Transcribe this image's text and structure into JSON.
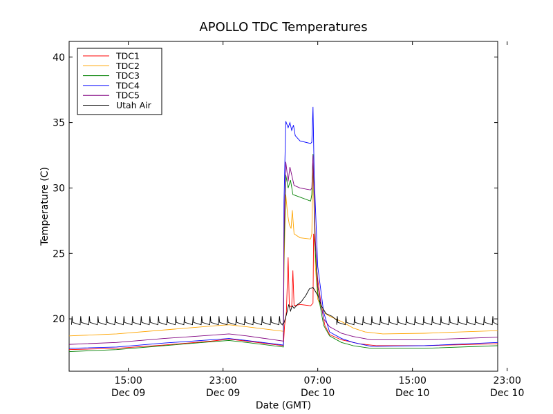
{
  "chart_data": {
    "type": "line",
    "title": "APOLLO TDC Temperatures",
    "xlabel": "Date (GMT)",
    "ylabel": "Temperature (C)",
    "xlim": [
      10.0,
      46.2
    ],
    "ylim": [
      16,
      41.2
    ],
    "x_unit": "hours since Dec 09 00:00 GMT",
    "yticks": [
      20,
      25,
      30,
      35,
      40
    ],
    "ytick_labels": [
      "20",
      "25",
      "30",
      "35",
      "40"
    ],
    "xticks": [
      {
        "x": 15,
        "time": "15:00",
        "date": "Dec 09"
      },
      {
        "x": 23,
        "time": "23:00",
        "date": "Dec 09"
      },
      {
        "x": 31,
        "time": "07:00",
        "date": "Dec 10"
      },
      {
        "x": 39,
        "time": "15:00",
        "date": "Dec 10"
      },
      {
        "x": 47,
        "time": "23:00",
        "date": "Dec 10"
      }
    ],
    "grid": false,
    "legend_position": "top-left",
    "series": [
      {
        "name": "TDC1",
        "color": "#ff0000",
        "points": [
          [
            10,
            17.65
          ],
          [
            14,
            17.75
          ],
          [
            18,
            18.0
          ],
          [
            22,
            18.3
          ],
          [
            23.5,
            18.45
          ],
          [
            25,
            18.3
          ],
          [
            28.1,
            17.95
          ],
          [
            28.2,
            19.5
          ],
          [
            28.35,
            20.5
          ],
          [
            28.5,
            24.7
          ],
          [
            28.6,
            21.0
          ],
          [
            28.8,
            20.9
          ],
          [
            28.9,
            23.7
          ],
          [
            29.0,
            21.0
          ],
          [
            29.5,
            21.1
          ],
          [
            30.4,
            21.0
          ],
          [
            30.6,
            21.2
          ],
          [
            30.65,
            26.5
          ],
          [
            30.9,
            24.0
          ],
          [
            31.0,
            23.0
          ],
          [
            31.3,
            21.0
          ],
          [
            31.6,
            19.5
          ],
          [
            32.0,
            18.8
          ],
          [
            33.0,
            18.4
          ],
          [
            34.5,
            18.1
          ],
          [
            36.0,
            17.95
          ],
          [
            40,
            17.95
          ],
          [
            46.2,
            18.1
          ]
        ]
      },
      {
        "name": "TDC2",
        "color": "#ffa500",
        "points": [
          [
            10,
            18.7
          ],
          [
            14,
            18.85
          ],
          [
            18,
            19.15
          ],
          [
            22,
            19.45
          ],
          [
            23.5,
            19.55
          ],
          [
            25,
            19.4
          ],
          [
            28.1,
            19.05
          ],
          [
            28.15,
            24.0
          ],
          [
            28.3,
            29.5
          ],
          [
            28.45,
            28.0
          ],
          [
            28.6,
            27.2
          ],
          [
            28.75,
            26.9
          ],
          [
            28.85,
            28.3
          ],
          [
            29.0,
            26.5
          ],
          [
            29.5,
            26.2
          ],
          [
            30.4,
            26.1
          ],
          [
            30.5,
            26.5
          ],
          [
            30.6,
            32.0
          ],
          [
            30.8,
            24.0
          ],
          [
            31.0,
            21.5
          ],
          [
            31.5,
            20.5
          ],
          [
            32.0,
            20.2
          ],
          [
            33.0,
            19.8
          ],
          [
            34.0,
            19.3
          ],
          [
            35.0,
            19.0
          ],
          [
            36.5,
            18.85
          ],
          [
            40,
            18.9
          ],
          [
            46.2,
            19.1
          ]
        ]
      },
      {
        "name": "TDC3",
        "color": "#008000",
        "points": [
          [
            10,
            17.5
          ],
          [
            14,
            17.65
          ],
          [
            18,
            17.95
          ],
          [
            22,
            18.25
          ],
          [
            23.5,
            18.35
          ],
          [
            25,
            18.2
          ],
          [
            28.1,
            17.85
          ],
          [
            28.15,
            25.0
          ],
          [
            28.3,
            31.0
          ],
          [
            28.5,
            30.0
          ],
          [
            28.7,
            30.6
          ],
          [
            28.9,
            29.5
          ],
          [
            29.2,
            29.4
          ],
          [
            30.4,
            29.0
          ],
          [
            30.5,
            29.5
          ],
          [
            30.6,
            32.6
          ],
          [
            30.8,
            25.0
          ],
          [
            31.0,
            22.0
          ],
          [
            31.5,
            19.5
          ],
          [
            32.0,
            18.7
          ],
          [
            33.0,
            18.2
          ],
          [
            34.0,
            17.95
          ],
          [
            35.5,
            17.75
          ],
          [
            40,
            17.75
          ],
          [
            46.2,
            17.95
          ]
        ]
      },
      {
        "name": "TDC4",
        "color": "#0000ff",
        "points": [
          [
            10,
            17.75
          ],
          [
            14,
            17.85
          ],
          [
            18,
            18.15
          ],
          [
            22,
            18.4
          ],
          [
            23.5,
            18.5
          ],
          [
            25,
            18.35
          ],
          [
            28.1,
            18.0
          ],
          [
            28.15,
            29.0
          ],
          [
            28.3,
            35.1
          ],
          [
            28.5,
            34.6
          ],
          [
            28.65,
            35.0
          ],
          [
            28.8,
            34.4
          ],
          [
            28.95,
            34.8
          ],
          [
            29.1,
            34.0
          ],
          [
            29.5,
            33.6
          ],
          [
            30.4,
            33.4
          ],
          [
            30.5,
            33.5
          ],
          [
            30.6,
            36.2
          ],
          [
            30.7,
            31.0
          ],
          [
            31.0,
            24.0
          ],
          [
            31.5,
            20.5
          ],
          [
            32.0,
            19.0
          ],
          [
            33.0,
            18.5
          ],
          [
            34.0,
            18.2
          ],
          [
            35.5,
            17.9
          ],
          [
            40,
            17.95
          ],
          [
            46.2,
            18.2
          ]
        ]
      },
      {
        "name": "TDC5",
        "color": "#800080",
        "points": [
          [
            10,
            18.05
          ],
          [
            14,
            18.2
          ],
          [
            18,
            18.5
          ],
          [
            22,
            18.75
          ],
          [
            23.5,
            18.85
          ],
          [
            25,
            18.7
          ],
          [
            28.1,
            18.3
          ],
          [
            28.15,
            26.5
          ],
          [
            28.3,
            32.0
          ],
          [
            28.5,
            30.5
          ],
          [
            28.65,
            31.6
          ],
          [
            28.8,
            31.0
          ],
          [
            29.0,
            30.2
          ],
          [
            29.5,
            30.0
          ],
          [
            30.4,
            29.85
          ],
          [
            30.5,
            30.0
          ],
          [
            30.6,
            32.5
          ],
          [
            30.8,
            26.0
          ],
          [
            31.0,
            22.5
          ],
          [
            31.5,
            20.0
          ],
          [
            32.0,
            19.4
          ],
          [
            33.0,
            18.9
          ],
          [
            34.0,
            18.65
          ],
          [
            35.5,
            18.4
          ],
          [
            40,
            18.4
          ],
          [
            46.2,
            18.6
          ]
        ]
      },
      {
        "name": "Utah Air",
        "color": "#000000",
        "sawtooth": {
          "x_start": 10.2,
          "x_end": 28.0,
          "period": 0.73,
          "low": 19.55,
          "high": 20.2
        },
        "sawtooth_after": {
          "x_start": 32.6,
          "x_end": 46.2,
          "period": 0.73,
          "low": 19.55,
          "high": 20.2
        },
        "points": [
          [
            28.0,
            19.6
          ],
          [
            28.15,
            19.7
          ],
          [
            28.35,
            20.3
          ],
          [
            28.55,
            21.1
          ],
          [
            28.7,
            20.6
          ],
          [
            28.85,
            21.0
          ],
          [
            29.0,
            20.8
          ],
          [
            29.3,
            21.1
          ],
          [
            29.6,
            21.3
          ],
          [
            30.0,
            21.8
          ],
          [
            30.3,
            22.3
          ],
          [
            30.6,
            22.4
          ],
          [
            31.0,
            21.8
          ],
          [
            31.3,
            21.0
          ],
          [
            31.7,
            20.4
          ],
          [
            32.2,
            20.2
          ],
          [
            32.6,
            19.9
          ]
        ]
      }
    ]
  }
}
